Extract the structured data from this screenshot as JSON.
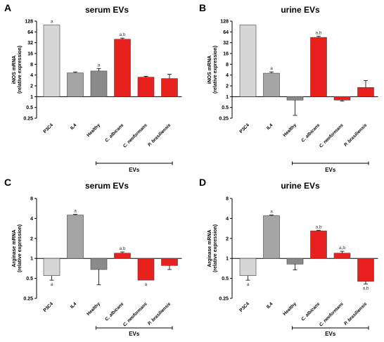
{
  "panels": [
    {
      "letter": "A",
      "chart_data": {
        "type": "bar",
        "title": "serum EVs",
        "ylabel": [
          "iNOS mRNA",
          "(relative expression)"
        ],
        "yscale": "log2",
        "ylim": [
          0.25,
          128
        ],
        "yticks": [
          0.25,
          0.5,
          1,
          2,
          4,
          8,
          16,
          32,
          64,
          128
        ],
        "ytick_labels": [
          "0.25",
          "0.5",
          "1",
          "2",
          "4",
          "8",
          "16",
          "32",
          "64",
          "128"
        ],
        "categories": [
          "P3C4",
          "IL4",
          "Healthy",
          "C. albicans",
          "C. neoformans",
          "P. brasiliensis"
        ],
        "values": [
          100,
          4.6,
          5.2,
          40,
          3.5,
          3.2
        ],
        "errors": [
          0,
          0.3,
          0.9,
          3,
          0.2,
          1.0
        ],
        "annotations": [
          "a",
          "",
          "a",
          "a,b",
          "",
          ""
        ],
        "colors": [
          "#d6d6d6",
          "#a5a5a5",
          "#8a8a8a",
          "#e8201e",
          "#e8201e",
          "#e8201e"
        ],
        "group_label": "EVs"
      }
    },
    {
      "letter": "B",
      "chart_data": {
        "type": "bar",
        "title": "urine EVs",
        "ylabel": [
          "iNOS mRNA",
          "(relative expression)"
        ],
        "yscale": "log2",
        "ylim": [
          0.25,
          128
        ],
        "yticks": [
          0.25,
          0.5,
          1,
          2,
          4,
          8,
          16,
          32,
          64,
          128
        ],
        "ytick_labels": [
          "0.25",
          "0.5",
          "1",
          "2",
          "4",
          "8",
          "16",
          "32",
          "64",
          "128"
        ],
        "categories": [
          "P3C4",
          "IL4",
          "Healthy",
          "C. albicans",
          "C. neoformans",
          "P. brasiliensis"
        ],
        "values": [
          100,
          4.5,
          0.8,
          45,
          0.8,
          1.8
        ],
        "errors": [
          0,
          0.4,
          0.5,
          3,
          0.05,
          1.0
        ],
        "annotations": [
          "",
          "a",
          "",
          "a,b",
          "",
          ""
        ],
        "colors": [
          "#d6d6d6",
          "#a5a5a5",
          "#8a8a8a",
          "#e8201e",
          "#e8201e",
          "#e8201e"
        ],
        "group_label": "EVs"
      }
    },
    {
      "letter": "C",
      "chart_data": {
        "type": "bar",
        "title": "serum EVs",
        "ylabel": [
          "Arginase mRNA",
          "(relative expression)"
        ],
        "yscale": "log2",
        "ylim": [
          0.25,
          8
        ],
        "yticks": [
          0.25,
          0.5,
          1,
          2,
          4,
          8
        ],
        "ytick_labels": [
          "0.25",
          "0.5",
          "1",
          "2",
          "4",
          "8"
        ],
        "categories": [
          "P3C4",
          "IL4",
          "Healthy",
          "C. albicans",
          "C. neoformans",
          "P. brasiliensis"
        ],
        "values": [
          0.55,
          4.5,
          0.68,
          1.2,
          0.47,
          0.78
        ],
        "errors": [
          0.08,
          0.1,
          0.28,
          0.05,
          0,
          0.1
        ],
        "annotations": [
          "a",
          "a",
          "",
          "a,b",
          "a",
          ""
        ],
        "colors": [
          "#d6d6d6",
          "#a5a5a5",
          "#8a8a8a",
          "#e8201e",
          "#e8201e",
          "#e8201e"
        ],
        "group_label": "EVs"
      }
    },
    {
      "letter": "D",
      "chart_data": {
        "type": "bar",
        "title": "urine EVs",
        "ylabel": [
          "Arginase mRNA",
          "(relative expression)"
        ],
        "yscale": "log2",
        "ylim": [
          0.25,
          8
        ],
        "yticks": [
          0.25,
          0.5,
          1,
          2,
          4,
          8
        ],
        "ytick_labels": [
          "0.25",
          "0.5",
          "1",
          "2",
          "4",
          "8"
        ],
        "categories": [
          "P3C4",
          "IL4",
          "Healthy",
          "C. albicans",
          "C. neoformans",
          "P. brasiliensis"
        ],
        "values": [
          0.55,
          4.4,
          0.82,
          2.6,
          1.2,
          0.45
        ],
        "errors": [
          0.08,
          0.1,
          0.15,
          0.05,
          0.08,
          0.04
        ],
        "annotations": [
          "a",
          "a",
          "",
          "a,b",
          "a,b",
          "a,b"
        ],
        "colors": [
          "#d6d6d6",
          "#a5a5a5",
          "#8a8a8a",
          "#e8201e",
          "#e8201e",
          "#e8201e"
        ],
        "group_label": "EVs"
      }
    }
  ]
}
